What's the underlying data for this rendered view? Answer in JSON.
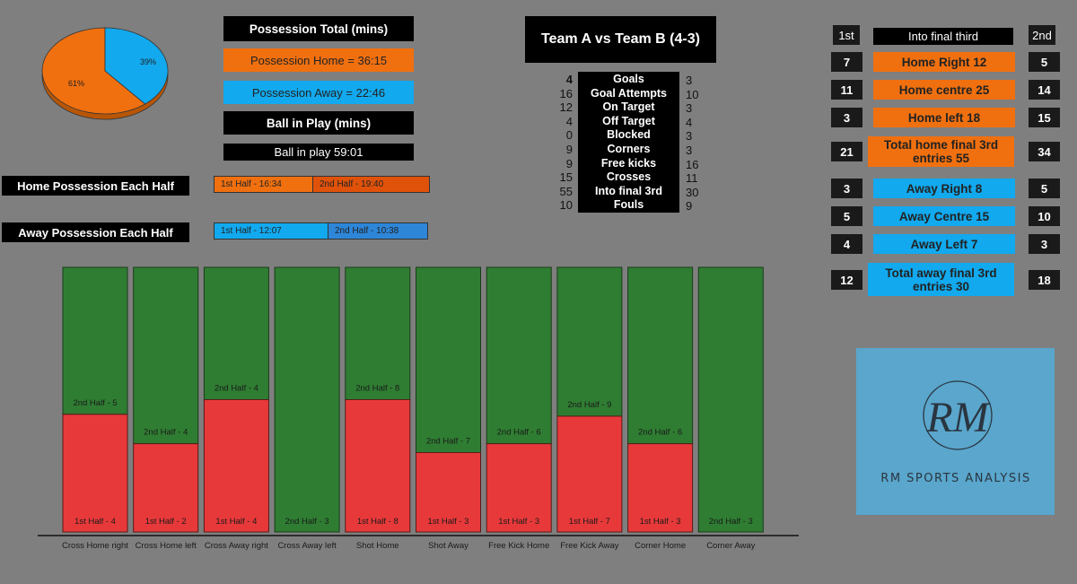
{
  "pie": {
    "home_pct": 61,
    "away_pct": 39,
    "home_label": "61%",
    "away_label": "39%",
    "home_color": "#f07010",
    "away_color": "#12a9ee"
  },
  "possession": {
    "title": "Possession Total (mins)",
    "home": "Possession Home = 36:15",
    "away": "Possession Away = 22:46",
    "ball_title": "Ball in Play (mins)",
    "ball": "Ball in play 59:01"
  },
  "halves": {
    "home_title": "Home Possession Each Half",
    "home_first": "1st Half - 16:34",
    "home_second": "2nd Half - 19:40",
    "away_title": "Away Possession Each Half",
    "away_first": "1st Half - 12:07",
    "away_second": "2nd Half - 10:38"
  },
  "match": {
    "title": "Team A vs Team B (4-3)",
    "stats": [
      {
        "label": "Goals",
        "home": "4",
        "away": "3"
      },
      {
        "label": "Goal Attempts",
        "home": "16",
        "away": "10"
      },
      {
        "label": "On Target",
        "home": "12",
        "away": "3"
      },
      {
        "label": "Off Target",
        "home": "4",
        "away": "4"
      },
      {
        "label": "Blocked",
        "home": "0",
        "away": "3"
      },
      {
        "label": "Corners",
        "home": "9",
        "away": "3"
      },
      {
        "label": "Free kicks",
        "home": "9",
        "away": "16"
      },
      {
        "label": "Crosses",
        "home": "15",
        "away": "11"
      },
      {
        "label": "Into final 3rd",
        "home": "55",
        "away": "30"
      },
      {
        "label": "Fouls",
        "home": "10",
        "away": "9"
      }
    ]
  },
  "final_third": {
    "first_label": "1st",
    "second_label": "2nd",
    "title": "Into final third",
    "rows": [
      {
        "label": "Home Right 12",
        "first": "7",
        "second": "5",
        "team": "home"
      },
      {
        "label": "Home centre 25",
        "first": "11",
        "second": "14",
        "team": "home"
      },
      {
        "label": "Home left 18",
        "first": "3",
        "second": "15",
        "team": "home"
      },
      {
        "label": "Total home final 3rd entries 55",
        "first": "21",
        "second": "34",
        "team": "home"
      },
      {
        "label": "Away Right 8",
        "first": "3",
        "second": "5",
        "team": "away"
      },
      {
        "label": "Away Centre 15",
        "first": "5",
        "second": "10",
        "team": "away"
      },
      {
        "label": "Away Left 7",
        "first": "4",
        "second": "3",
        "team": "away"
      },
      {
        "label": "Total away final 3rd entries 30",
        "first": "12",
        "second": "18",
        "team": "away"
      }
    ]
  },
  "logo": {
    "monogram": "RM",
    "text": "RM SPORTS ANALYSIS"
  },
  "chart_data": {
    "type": "bar",
    "stacked": "100%",
    "categories": [
      "Cross Home right",
      "Cross Home left",
      "Cross Away right",
      "Cross Away left",
      "Shot Home",
      "Shot Away",
      "Free Kick Home",
      "Free Kick Away",
      "Corner Home",
      "Corner Away"
    ],
    "series": [
      {
        "name": "1st Half",
        "color": "#e8393a",
        "values": [
          4,
          2,
          4,
          0,
          8,
          3,
          3,
          7,
          3,
          0
        ],
        "labels": [
          "1st Half - 4",
          "1st Half - 2",
          "1st Half - 4",
          "",
          "1st Half - 8",
          "1st Half - 3",
          "1st Half - 3",
          "1st Half - 7",
          "1st Half - 3",
          ""
        ]
      },
      {
        "name": "2nd Half",
        "color": "#2f7d32",
        "values": [
          5,
          4,
          4,
          3,
          8,
          7,
          6,
          9,
          6,
          3
        ],
        "labels": [
          "2nd Half - 5",
          "2nd Half - 4",
          "2nd Half - 4",
          "2nd Half - 3",
          "2nd Half - 8",
          "2nd Half - 7",
          "2nd Half - 6",
          "2nd Half - 9",
          "2nd Half - 6",
          "2nd Half - 3"
        ]
      }
    ]
  }
}
